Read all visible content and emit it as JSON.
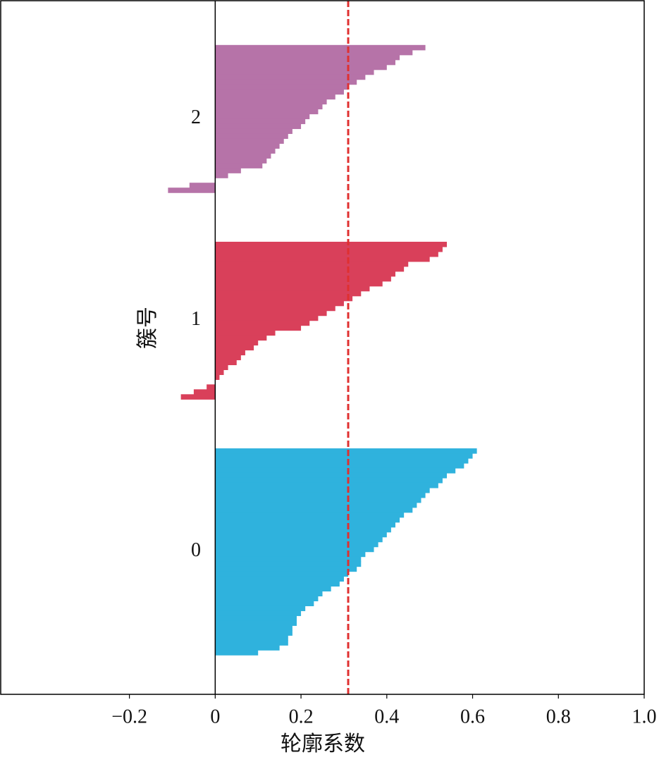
{
  "chart_data": {
    "type": "silhouette",
    "xlabel": "轮廓系数",
    "ylabel": "簇号",
    "xlim": [
      -0.5,
      1.0
    ],
    "xticks": [
      {
        "value": -0.2,
        "label": "−0.2"
      },
      0,
      0.2,
      0.4,
      0.6,
      0.8,
      {
        "value": 1,
        "label": "1.0"
      }
    ],
    "avg": 0.31,
    "avg_color": "#e03030",
    "series": [
      {
        "name": "0",
        "color": "#2fb2dd",
        "values": [
          0.61,
          0.6,
          0.59,
          0.58,
          0.56,
          0.54,
          0.53,
          0.52,
          0.5,
          0.49,
          0.48,
          0.47,
          0.46,
          0.44,
          0.43,
          0.42,
          0.41,
          0.4,
          0.39,
          0.38,
          0.37,
          0.35,
          0.34,
          0.34,
          0.33,
          0.31,
          0.3,
          0.29,
          0.27,
          0.25,
          0.24,
          0.23,
          0.21,
          0.2,
          0.19,
          0.19,
          0.18,
          0.18,
          0.17,
          0.17,
          0.15,
          0.1
        ]
      },
      {
        "name": "1",
        "color": "#d9405a",
        "values": [
          0.54,
          0.53,
          0.52,
          0.5,
          0.45,
          0.44,
          0.42,
          0.41,
          0.39,
          0.36,
          0.34,
          0.32,
          0.3,
          0.28,
          0.26,
          0.24,
          0.22,
          0.2,
          0.14,
          0.12,
          0.1,
          0.09,
          0.07,
          0.06,
          0.05,
          0.03,
          0.02,
          0.01,
          0.0,
          -0.02,
          -0.05,
          -0.08
        ]
      },
      {
        "name": "2",
        "color": "#b673a8",
        "values": [
          0.49,
          0.46,
          0.43,
          0.42,
          0.4,
          0.37,
          0.35,
          0.33,
          0.31,
          0.3,
          0.28,
          0.26,
          0.25,
          0.24,
          0.22,
          0.21,
          0.2,
          0.18,
          0.17,
          0.16,
          0.15,
          0.14,
          0.13,
          0.12,
          0.11,
          0.06,
          0.03,
          0.0,
          -0.06,
          -0.11
        ]
      }
    ]
  }
}
